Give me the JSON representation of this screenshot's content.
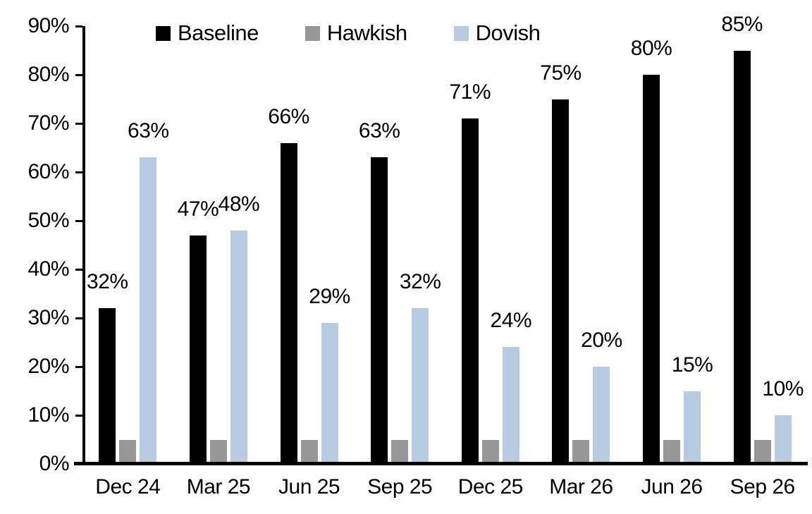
{
  "chart_data": {
    "type": "bar",
    "title": "",
    "xlabel": "",
    "ylabel": "",
    "categories": [
      "Dec 24",
      "Mar 25",
      "Jun 25",
      "Sep 25",
      "Dec 25",
      "Mar 26",
      "Jun 26",
      "Sep 26"
    ],
    "series": [
      {
        "name": "Baseline",
        "color": "#000000",
        "values": [
          32,
          47,
          66,
          63,
          71,
          75,
          80,
          85
        ],
        "labels_shown": true
      },
      {
        "name": "Hawkish",
        "color": "#979797",
        "values": [
          5,
          5,
          5,
          5,
          5,
          5,
          5,
          5
        ],
        "labels_shown": false
      },
      {
        "name": "Dovish",
        "color": "#b7cce3",
        "values": [
          63,
          48,
          29,
          32,
          24,
          20,
          15,
          10
        ],
        "labels_shown": true
      }
    ],
    "data_labels": {
      "Baseline": [
        "32%",
        "47%",
        "66%",
        "63%",
        "71%",
        "75%",
        "80%",
        "85%"
      ],
      "Dovish": [
        "63%",
        "48%",
        "29%",
        "32%",
        "24%",
        "20%",
        "15%",
        "10%"
      ]
    },
    "ylim": [
      0,
      90
    ],
    "ytick_step": 10,
    "ytick_labels": [
      "0%",
      "10%",
      "20%",
      "30%",
      "40%",
      "50%",
      "60%",
      "70%",
      "80%",
      "90%"
    ],
    "legend_position": "top",
    "legend_entries": [
      "Baseline",
      "Hawkish",
      "Dovish"
    ],
    "grid": false,
    "axis_color": "#000000",
    "background_color": "#ffffff"
  }
}
